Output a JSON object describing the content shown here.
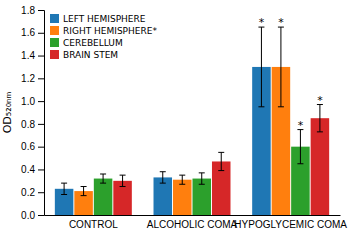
{
  "chart_data": {
    "type": "bar",
    "ylabel": "OD₅₂₀ₙₘ",
    "categories": [
      "CONTROL",
      "ALCOHOLIC COMA",
      "HYPOGLYCEMIC COMA"
    ],
    "series": [
      {
        "name": "LEFT HEMISPHERE",
        "values": [
          0.23,
          0.33,
          1.3
        ],
        "errors": [
          0.05,
          0.05,
          0.35
        ]
      },
      {
        "name": "RIGHT HEMISPHERE*",
        "values": [
          0.21,
          0.31,
          1.3
        ],
        "errors": [
          0.04,
          0.04,
          0.35
        ]
      },
      {
        "name": "CEREBELLUM",
        "values": [
          0.32,
          0.32,
          0.6
        ],
        "errors": [
          0.04,
          0.05,
          0.15
        ]
      },
      {
        "name": "BRAIN STEM",
        "values": [
          0.3,
          0.47,
          0.85
        ],
        "errors": [
          0.05,
          0.08,
          0.12
        ]
      }
    ],
    "annotations": [
      {
        "text": "*",
        "series": 0,
        "category": 2
      },
      {
        "text": "*",
        "series": 1,
        "category": 2
      },
      {
        "text": "*",
        "series": 2,
        "category": 2
      },
      {
        "text": "*",
        "series": 3,
        "category": 2
      }
    ],
    "ylim": [
      0,
      1.8
    ],
    "yticks": [
      {
        "value": 0,
        "label": "0.0"
      },
      0.2,
      0.4,
      0.6,
      0.8,
      {
        "value": 1.0,
        "label": "1.0"
      },
      1.2,
      1.4,
      1.6,
      1.8
    ],
    "legend": "upper left",
    "grid": false
  }
}
